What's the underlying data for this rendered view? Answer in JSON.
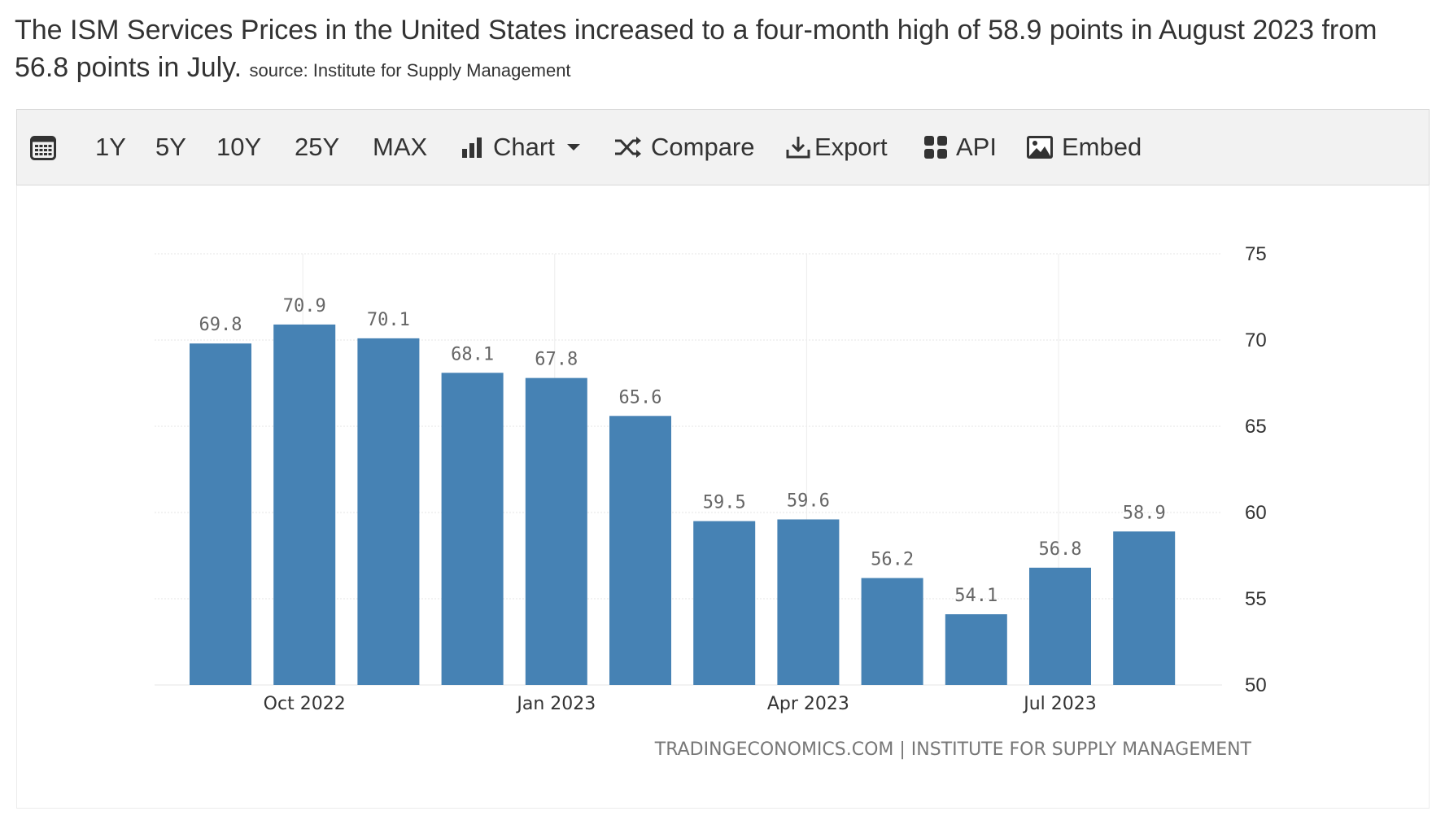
{
  "headline": {
    "text": "The ISM Services Prices in the United States increased to a four-month high of 58.9 points in August 2023 from 56.8 points in July.",
    "source": "source: Institute for Supply Management"
  },
  "toolbar": {
    "calendar_icon": "calendar-icon",
    "ranges": [
      "1Y",
      "5Y",
      "10Y",
      "25Y",
      "MAX"
    ],
    "chart_label": "Chart",
    "compare_label": "Compare",
    "export_label": "Export",
    "api_label": "API",
    "embed_label": "Embed"
  },
  "chart_data": {
    "type": "bar",
    "title": "",
    "categories": [
      "Sep 2022",
      "Oct 2022",
      "Nov 2022",
      "Dec 2022",
      "Jan 2023",
      "Feb 2023",
      "Mar 2023",
      "Apr 2023",
      "May 2023",
      "Jun 2023",
      "Jul 2023",
      "Aug 2023"
    ],
    "values": [
      69.8,
      70.9,
      70.1,
      68.1,
      67.8,
      65.6,
      59.5,
      59.6,
      56.2,
      54.1,
      56.8,
      58.9
    ],
    "data_labels": [
      "69.8",
      "70.9",
      "70.1",
      "68.1",
      "67.8",
      "65.6",
      "59.5",
      "59.6",
      "56.2",
      "54.1",
      "56.8",
      "58.9"
    ],
    "x_tick_labels": [
      {
        "label": "Oct 2022",
        "at": 1
      },
      {
        "label": "Jan 2023",
        "at": 4
      },
      {
        "label": "Apr 2023",
        "at": 7
      },
      {
        "label": "Jul 2023",
        "at": 10
      }
    ],
    "y_ticks": [
      50,
      55,
      60,
      65,
      70,
      75
    ],
    "ylim": [
      50,
      75
    ],
    "xlabel": "",
    "ylabel": "",
    "y_axis_side": "right",
    "grid": true,
    "bar_color": "#4682b4",
    "credit": "TRADINGECONOMICS.COM | INSTITUTE FOR SUPPLY MANAGEMENT"
  }
}
